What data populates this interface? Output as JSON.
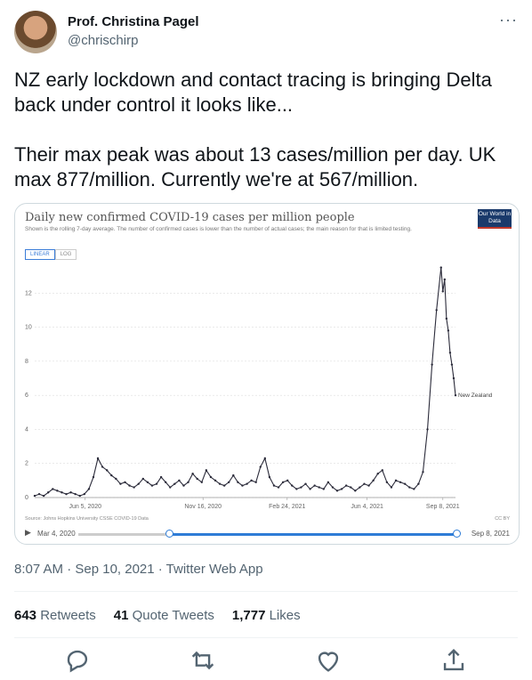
{
  "author": {
    "name": "Prof. Christina Pagel",
    "handle": "@chrischirp"
  },
  "more_label": "···",
  "tweet": {
    "para1": "NZ early lockdown and contact tracing is bringing Delta back under control it looks like...",
    "para2": "Their max peak was about 13 cases/million per day. UK max 877/million. Currently we're at 567/million."
  },
  "embed": {
    "title": "Daily new confirmed COVID-19 cases per million people",
    "subtitle": "Shown is the rolling 7-day average. The number of confirmed cases is lower than the number of actual cases; the main reason for that is limited testing.",
    "logo": "Our World in Data",
    "toggle_linear": "LINEAR",
    "toggle_log": "LOG",
    "source": "Source: Johns Hopkins University CSSE COVID-19 Data",
    "license": "CC BY",
    "timeline_start": "Mar 4, 2020",
    "timeline_end": "Sep 8, 2021",
    "timeline_selected_fraction": [
      0.24,
      1.0
    ]
  },
  "chart_data": {
    "type": "line",
    "title": "Daily new confirmed COVID-19 cases per million people",
    "ylim": [
      0,
      14
    ],
    "yticks": [
      0,
      2,
      4,
      6,
      8,
      10,
      12
    ],
    "xticks": [
      "Jun 5, 2020",
      "Nov 16, 2020",
      "Feb 24, 2021",
      "Jun 4, 2021",
      "Sep 8, 2021"
    ],
    "series": [
      {
        "name": "New Zealand",
        "x": [
          0,
          5,
          10,
          15,
          20,
          25,
          30,
          35,
          40,
          45,
          50,
          55,
          60,
          65,
          70,
          75,
          80,
          85,
          90,
          95,
          100,
          105,
          110,
          115,
          120,
          125,
          130,
          135,
          140,
          145,
          150,
          155,
          160,
          165,
          170,
          175,
          180,
          185,
          190,
          195,
          200,
          205,
          210,
          215,
          220,
          225,
          230,
          235,
          240,
          245,
          250,
          255,
          260,
          265,
          270,
          275,
          280,
          285,
          290,
          295,
          300,
          305,
          310,
          315,
          320,
          325,
          330,
          335,
          340,
          345,
          350,
          355,
          360,
          365,
          370,
          375,
          380,
          385,
          390,
          395,
          400,
          405,
          410,
          415,
          420,
          425,
          430,
          435,
          440,
          445,
          450,
          452,
          454,
          456,
          458,
          460,
          462,
          464,
          466
        ],
        "values": [
          0.1,
          0.2,
          0.1,
          0.3,
          0.5,
          0.4,
          0.3,
          0.2,
          0.3,
          0.2,
          0.1,
          0.2,
          0.5,
          1.2,
          2.3,
          1.8,
          1.6,
          1.3,
          1.1,
          0.8,
          0.9,
          0.7,
          0.6,
          0.8,
          1.1,
          0.9,
          0.7,
          0.8,
          1.2,
          0.9,
          0.6,
          0.8,
          1.0,
          0.7,
          0.9,
          1.4,
          1.1,
          0.9,
          1.6,
          1.2,
          1.0,
          0.8,
          0.7,
          0.9,
          1.3,
          0.9,
          0.7,
          0.8,
          1.0,
          0.9,
          1.8,
          2.3,
          1.2,
          0.7,
          0.6,
          0.9,
          1.0,
          0.7,
          0.5,
          0.6,
          0.8,
          0.5,
          0.7,
          0.6,
          0.5,
          0.9,
          0.6,
          0.4,
          0.5,
          0.7,
          0.6,
          0.4,
          0.6,
          0.8,
          0.7,
          1.0,
          1.4,
          1.6,
          0.9,
          0.6,
          1.0,
          0.9,
          0.8,
          0.6,
          0.5,
          0.8,
          1.5,
          4.0,
          7.8,
          11.0,
          13.5,
          12.1,
          12.8,
          10.5,
          9.8,
          8.5,
          7.8,
          7.0,
          6.0
        ],
        "end_label": "New Zealand"
      }
    ]
  },
  "timestamp": "8:07 AM · Sep 10, 2021 · Twitter Web App",
  "stats": {
    "retweets_count": "643",
    "retweets_label": "Retweets",
    "quotes_count": "41",
    "quotes_label": "Quote Tweets",
    "likes_count": "1,777",
    "likes_label": "Likes"
  },
  "icons": {
    "reply": "reply-icon",
    "retweet": "retweet-icon",
    "like": "like-icon",
    "share": "share-icon"
  }
}
